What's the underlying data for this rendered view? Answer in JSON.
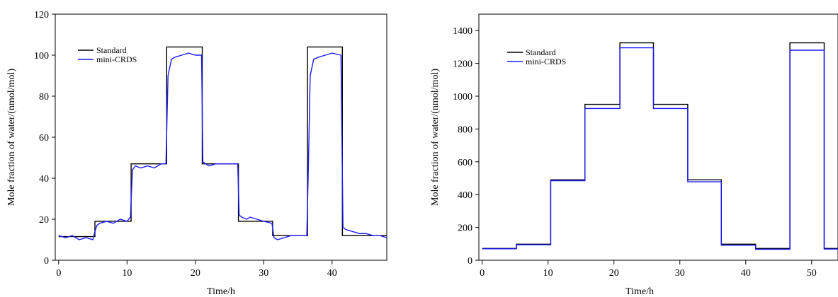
{
  "chart_data": [
    {
      "type": "line",
      "title": "",
      "xlabel": "Time/h",
      "ylabel": "Mole fraction of water/(nmol/mol)",
      "xlim": [
        -0.5,
        48
      ],
      "ylim": [
        0,
        120
      ],
      "xticks": [
        0,
        10,
        20,
        30,
        40
      ],
      "yticks": [
        0,
        20,
        40,
        60,
        80,
        100,
        120
      ],
      "grid": false,
      "legend_position": "top-left",
      "series": [
        {
          "name": "Standard",
          "color": "#000000",
          "x": [
            0,
            5.3,
            5.3,
            10.6,
            10.6,
            15.8,
            15.8,
            21.0,
            21.0,
            26.3,
            26.3,
            31.3,
            31.3,
            36.4,
            36.4,
            41.5,
            41.5,
            48
          ],
          "y": [
            11.5,
            11.5,
            19,
            19,
            47,
            47,
            104,
            104,
            47,
            47,
            19,
            19,
            12,
            12,
            104,
            104,
            12,
            12
          ]
        },
        {
          "name": "mini-CRDS",
          "color": "#1a1aff",
          "x": [
            0,
            1,
            2,
            3,
            4,
            5,
            5.3,
            5.6,
            6,
            7,
            8,
            9,
            10,
            10.5,
            10.8,
            11.2,
            12,
            13,
            14,
            15,
            15.7,
            16,
            16.5,
            17,
            18,
            19,
            20,
            20.9,
            21.1,
            21.5,
            22,
            23,
            24,
            25,
            26.2,
            26.4,
            26.8,
            27.5,
            28,
            29,
            30,
            31.2,
            31.5,
            32,
            33,
            34,
            35,
            36.3,
            36.5,
            36.8,
            37.3,
            38,
            39,
            40,
            41.3,
            41.6,
            42,
            43,
            44,
            45,
            46,
            47,
            48
          ],
          "y": [
            12,
            11,
            12,
            10,
            11,
            10,
            14,
            17,
            18,
            19,
            18,
            20,
            19,
            21,
            44,
            46,
            45,
            46,
            45,
            47,
            47,
            90,
            98,
            99,
            100,
            101,
            100,
            100,
            48,
            47,
            46,
            47,
            47,
            47,
            47,
            22,
            21,
            20,
            21,
            20,
            19,
            18,
            11,
            10,
            11,
            12,
            12,
            12,
            40,
            90,
            98,
            99,
            100,
            101,
            100,
            16,
            15,
            14,
            13,
            13,
            12,
            12,
            11
          ]
        }
      ]
    },
    {
      "type": "line",
      "title": "",
      "xlabel": "Time/h",
      "ylabel": "Mole fraction of water/(nmol/mol)",
      "xlim": [
        -0.5,
        54
      ],
      "ylim": [
        0,
        1500
      ],
      "xticks": [
        0,
        10,
        20,
        30,
        40,
        50
      ],
      "yticks": [
        0,
        200,
        400,
        600,
        800,
        1000,
        1200,
        1400
      ],
      "grid": false,
      "legend_position": "top-left",
      "series": [
        {
          "name": "Standard",
          "color": "#000000",
          "x": [
            0,
            5.2,
            5.2,
            10.4,
            10.4,
            15.6,
            15.6,
            20.9,
            20.9,
            26.0,
            26.0,
            31.2,
            31.2,
            36.3,
            36.3,
            41.5,
            41.5,
            46.7,
            46.7,
            51.9,
            51.9,
            54
          ],
          "y": [
            72,
            72,
            98,
            98,
            490,
            490,
            950,
            950,
            1325,
            1325,
            950,
            950,
            490,
            490,
            98,
            98,
            72,
            72,
            1325,
            1325,
            72,
            72
          ]
        },
        {
          "name": "mini-CRDS",
          "color": "#1a1aff",
          "x": [
            0,
            5.2,
            5.2,
            10.4,
            10.4,
            15.6,
            15.6,
            20.9,
            20.9,
            26.0,
            26.0,
            31.2,
            31.2,
            36.3,
            36.3,
            41.5,
            41.5,
            46.7,
            46.7,
            51.9,
            51.9,
            54
          ],
          "y": [
            70,
            70,
            94,
            94,
            485,
            485,
            925,
            925,
            1295,
            1295,
            925,
            925,
            478,
            478,
            92,
            92,
            67,
            67,
            1280,
            1280,
            68,
            68
          ]
        }
      ]
    }
  ]
}
